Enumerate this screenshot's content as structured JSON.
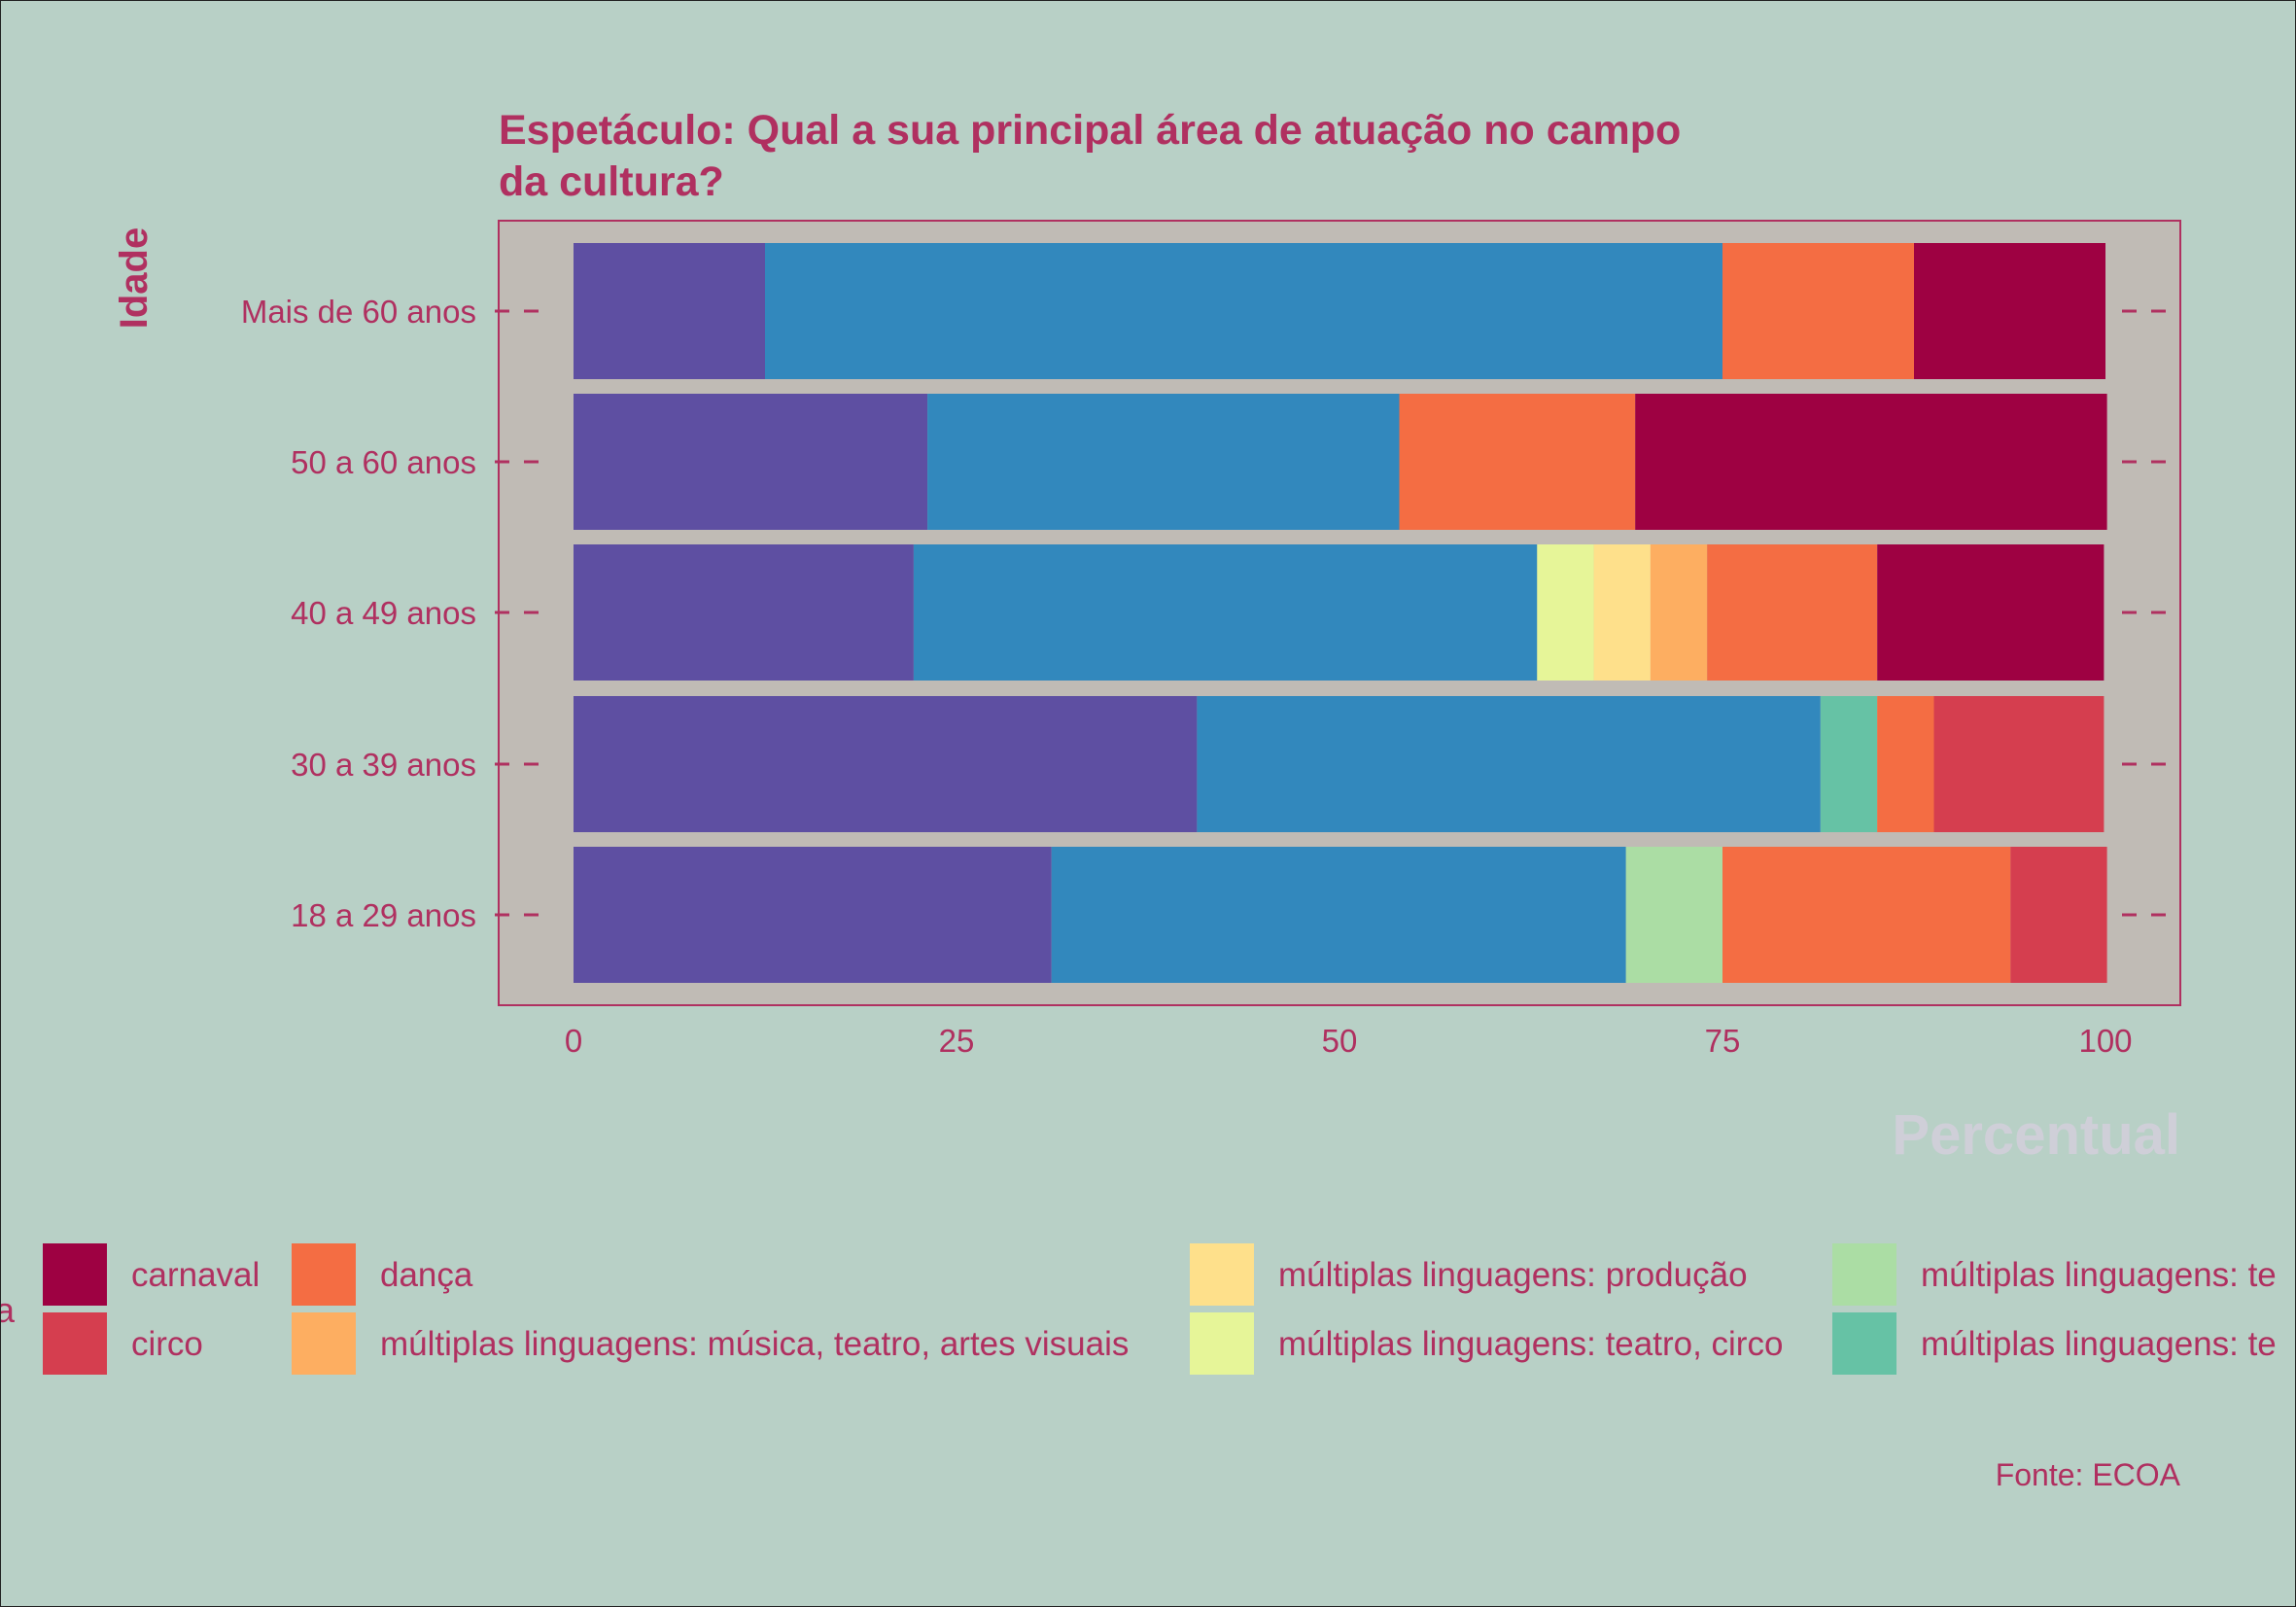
{
  "chart_data": {
    "type": "bar",
    "orientation": "horizontal",
    "stacked": true,
    "title": "Espetáculo: Qual a sua principal área de atuação no campo da cultura?",
    "title_lines": [
      "Espetáculo: Qual a sua principal área de atuação no campo",
      "da cultura?"
    ],
    "ylabel": "Idade",
    "xlabel": "Percentual",
    "caption": "Fonte: ECOA",
    "legend_title_fragment": "a",
    "xlim": [
      0,
      100
    ],
    "x_ticks": [
      "0",
      "25",
      "50",
      "75",
      "100"
    ],
    "categories": [
      "Mais de 60 anos",
      "50 a 60 anos",
      "40 a 49 anos",
      "30 a 39 anos",
      "18 a 29 anos"
    ],
    "series": [
      {
        "color": "#5e4fa2",
        "values": [
          12.5,
          23.1,
          22.2,
          40.7,
          31.2
        ]
      },
      {
        "color": "#3288bd",
        "values": [
          62.5,
          30.8,
          40.7,
          40.7,
          37.5
        ]
      },
      {
        "name": "múltiplas linguagens: te",
        "color": "#66c2a5",
        "values": [
          0,
          0,
          0,
          3.7,
          0
        ]
      },
      {
        "name": "múltiplas linguagens: te",
        "color": "#abdda4",
        "values": [
          0,
          0,
          0,
          0,
          6.3
        ]
      },
      {
        "name": "múltiplas linguagens: teatro, circo",
        "color": "#e6f598",
        "values": [
          0,
          0,
          3.7,
          0,
          0
        ]
      },
      {
        "name": "múltiplas linguagens: produção",
        "color": "#fee08b",
        "values": [
          0,
          0,
          3.7,
          0,
          0
        ]
      },
      {
        "name": "múltiplas linguagens: música, teatro, artes visuais",
        "color": "#fdae61",
        "values": [
          0,
          0,
          3.7,
          0,
          0
        ]
      },
      {
        "name": "dança",
        "color": "#f46d43",
        "values": [
          12.5,
          15.4,
          11.1,
          3.7,
          18.8
        ]
      },
      {
        "name": "circo",
        "color": "#d53e4f",
        "values": [
          0,
          0,
          0,
          11.1,
          6.3
        ]
      },
      {
        "name": "carnaval",
        "color": "#9e0142",
        "values": [
          12.5,
          30.8,
          14.8,
          0,
          0
        ]
      }
    ],
    "legend": {
      "placement": "bottom",
      "items": [
        {
          "label": "carnaval",
          "color": "#9e0142"
        },
        {
          "label": "circo",
          "color": "#d53e4f"
        },
        {
          "label": "dança",
          "color": "#f46d43"
        },
        {
          "label": "múltiplas linguagens: música, teatro, artes visuais",
          "color": "#fdae61"
        },
        {
          "label": "múltiplas linguagens: produção",
          "color": "#fee08b"
        },
        {
          "label": "múltiplas linguagens: teatro, circo",
          "color": "#e6f598"
        },
        {
          "label": "múltiplas linguagens: te",
          "color": "#abdda4"
        },
        {
          "label": "múltiplas linguagens: te",
          "color": "#66c2a5"
        }
      ]
    },
    "colors": {
      "background": "#b8d0c6",
      "panel": "#c0bbb5",
      "text": "#b03060",
      "axis_title_x": "#cfcfd8"
    },
    "grid": false
  }
}
